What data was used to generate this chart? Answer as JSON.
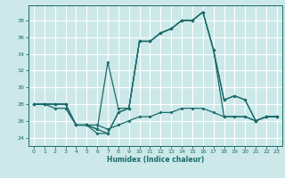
{
  "xlabel": "Humidex (Indice chaleur)",
  "bg_color": "#cce8e8",
  "grid_color": "#ffffff",
  "line_color": "#1a6b6b",
  "xlim": [
    -0.5,
    23.5
  ],
  "ylim": [
    23.0,
    39.8
  ],
  "yticks": [
    24,
    26,
    28,
    30,
    32,
    34,
    36,
    38
  ],
  "xticks": [
    0,
    1,
    2,
    3,
    4,
    5,
    6,
    7,
    8,
    9,
    10,
    11,
    12,
    13,
    14,
    15,
    16,
    17,
    18,
    19,
    20,
    21,
    22,
    23
  ],
  "s1": [
    28.0,
    28.0,
    28.0,
    28.0,
    25.5,
    25.5,
    25.0,
    24.5,
    27.0,
    27.5,
    35.5,
    35.5,
    36.5,
    37.0,
    38.0,
    38.0,
    39.0,
    34.5,
    28.5,
    29.0,
    28.5,
    26.0,
    26.5,
    26.5
  ],
  "s2": [
    28.0,
    28.0,
    28.0,
    28.0,
    25.5,
    25.5,
    25.0,
    33.0,
    27.5,
    27.5,
    35.5,
    35.5,
    36.5,
    37.0,
    38.0,
    38.0,
    39.0,
    34.5,
    28.5,
    29.0,
    28.5,
    26.0,
    26.5,
    26.5
  ],
  "s3": [
    28.0,
    28.0,
    28.0,
    28.0,
    25.5,
    25.5,
    24.5,
    24.5,
    27.0,
    27.5,
    35.5,
    35.5,
    36.5,
    37.0,
    38.0,
    38.0,
    39.0,
    34.5,
    26.5,
    26.5,
    26.5,
    26.0,
    26.5,
    26.5
  ],
  "s4": [
    28.0,
    28.0,
    27.5,
    27.5,
    25.5,
    25.5,
    25.5,
    25.0,
    25.5,
    26.0,
    26.5,
    26.5,
    27.0,
    27.0,
    27.5,
    27.5,
    27.5,
    27.0,
    26.5,
    26.5,
    26.5,
    26.0,
    26.5,
    26.5
  ]
}
